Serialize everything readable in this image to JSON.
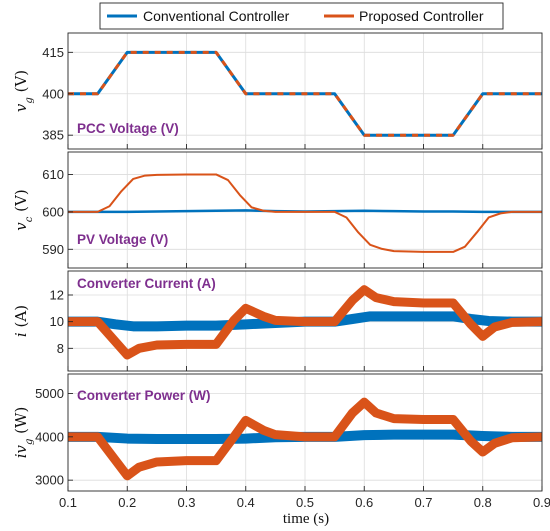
{
  "legend": {
    "items": [
      {
        "label": "Conventional Controller",
        "color": "#0072BD"
      },
      {
        "label": "Proposed Controller",
        "color": "#D95319"
      }
    ],
    "placement": "top"
  },
  "annotation_color": "#7E2F8E",
  "chart_data": [
    {
      "type": "line",
      "annotation": "PCC Voltage (V)",
      "ylabel": "v",
      "ylabel_sub": "g",
      "ylabel_unit": "(V)",
      "xlim": [
        0.1,
        0.9
      ],
      "ylim": [
        380,
        422
      ],
      "yticks": [
        385,
        400,
        415
      ],
      "grid": true,
      "series": [
        {
          "x": [
            0.1,
            0.15,
            0.2,
            0.35,
            0.4,
            0.55,
            0.6,
            0.75,
            0.8,
            0.9
          ],
          "y": [
            400,
            400,
            415,
            415,
            400,
            400,
            385,
            385,
            400,
            400
          ],
          "width": 3
        },
        {
          "x": [
            0.1,
            0.15,
            0.2,
            0.35,
            0.4,
            0.55,
            0.6,
            0.75,
            0.8,
            0.9
          ],
          "y": [
            400,
            400,
            415,
            415,
            400,
            400,
            385,
            385,
            400,
            400
          ],
          "width": 3,
          "dashed": true
        }
      ]
    },
    {
      "type": "line",
      "annotation": "PV Voltage (V)",
      "ylabel": "v",
      "ylabel_sub": "c",
      "ylabel_unit": "(V)",
      "xlim": [
        0.1,
        0.9
      ],
      "ylim": [
        585,
        616
      ],
      "yticks": [
        590,
        600,
        610
      ],
      "grid": true,
      "series": [
        {
          "x": [
            0.1,
            0.15,
            0.2,
            0.25,
            0.3,
            0.35,
            0.4,
            0.45,
            0.5,
            0.55,
            0.6,
            0.65,
            0.7,
            0.75,
            0.8,
            0.85,
            0.9
          ],
          "y": [
            600,
            600,
            600,
            600.1,
            600.2,
            600.3,
            600.4,
            600.2,
            600.1,
            600.2,
            600.3,
            600.2,
            600.1,
            600.1,
            600,
            600,
            600
          ],
          "width": 2.5
        },
        {
          "x": [
            0.1,
            0.15,
            0.17,
            0.19,
            0.21,
            0.23,
            0.25,
            0.3,
            0.35,
            0.37,
            0.39,
            0.41,
            0.43,
            0.45,
            0.5,
            0.55,
            0.57,
            0.59,
            0.61,
            0.63,
            0.65,
            0.7,
            0.75,
            0.77,
            0.79,
            0.81,
            0.83,
            0.85,
            0.9
          ],
          "y": [
            600,
            600,
            601.5,
            605.5,
            608.8,
            609.7,
            609.9,
            610,
            610,
            608.5,
            604.5,
            601.2,
            600.3,
            600,
            600,
            600,
            598.5,
            594.5,
            591.2,
            590.1,
            589.5,
            589.3,
            589.3,
            590.7,
            594.5,
            598.5,
            599.6,
            600,
            600
          ],
          "width": 2
        }
      ]
    },
    {
      "type": "line",
      "annotation": "Converter Current (A)",
      "ylabel": "i",
      "ylabel_sub": "",
      "ylabel_unit": "(A)",
      "xlim": [
        0.1,
        0.9
      ],
      "ylim": [
        6.3,
        13.8
      ],
      "yticks": [
        8,
        10,
        12
      ],
      "grid": true,
      "series": [
        {
          "x": [
            0.1,
            0.15,
            0.18,
            0.21,
            0.25,
            0.3,
            0.35,
            0.4,
            0.45,
            0.5,
            0.55,
            0.58,
            0.61,
            0.65,
            0.7,
            0.75,
            0.78,
            0.81,
            0.85,
            0.9
          ],
          "y": [
            10,
            10,
            9.8,
            9.65,
            9.65,
            9.7,
            9.7,
            9.8,
            9.9,
            10,
            10,
            10.2,
            10.4,
            10.4,
            10.4,
            10.4,
            10.2,
            10.05,
            10,
            10
          ],
          "width": 10
        },
        {
          "x": [
            0.1,
            0.15,
            0.2,
            0.22,
            0.25,
            0.3,
            0.35,
            0.38,
            0.4,
            0.43,
            0.45,
            0.5,
            0.55,
            0.58,
            0.6,
            0.62,
            0.65,
            0.7,
            0.75,
            0.78,
            0.8,
            0.82,
            0.85,
            0.9
          ],
          "y": [
            10,
            10,
            7.5,
            8.0,
            8.25,
            8.3,
            8.3,
            10.1,
            11.0,
            10.4,
            10.1,
            10,
            10,
            11.6,
            12.4,
            11.8,
            11.5,
            11.4,
            11.4,
            9.8,
            8.9,
            9.6,
            9.95,
            10
          ],
          "width": 9
        }
      ]
    },
    {
      "type": "line",
      "annotation": "Converter Power (W)",
      "ylabel": "iv",
      "ylabel_sub": "g",
      "ylabel_unit": "(W)",
      "xlim": [
        0.1,
        0.9
      ],
      "ylim": [
        2750,
        5450
      ],
      "yticks": [
        3000,
        4000,
        5000
      ],
      "grid": true,
      "series": [
        {
          "x": [
            0.1,
            0.15,
            0.2,
            0.25,
            0.3,
            0.35,
            0.4,
            0.45,
            0.5,
            0.55,
            0.6,
            0.65,
            0.7,
            0.75,
            0.8,
            0.85,
            0.9
          ],
          "y": [
            4000,
            4000,
            3960,
            3950,
            3950,
            3950,
            3960,
            3990,
            4000,
            4000,
            4040,
            4050,
            4050,
            4050,
            4020,
            4000,
            4000
          ],
          "width": 10
        },
        {
          "x": [
            0.1,
            0.15,
            0.2,
            0.22,
            0.25,
            0.3,
            0.35,
            0.38,
            0.4,
            0.43,
            0.45,
            0.5,
            0.55,
            0.58,
            0.6,
            0.62,
            0.65,
            0.7,
            0.75,
            0.78,
            0.8,
            0.82,
            0.85,
            0.9
          ],
          "y": [
            4000,
            4000,
            3100,
            3300,
            3420,
            3450,
            3450,
            4000,
            4380,
            4150,
            4050,
            4000,
            4000,
            4550,
            4800,
            4550,
            4420,
            4400,
            4400,
            3900,
            3650,
            3850,
            3980,
            4000
          ],
          "width": 9
        }
      ]
    }
  ],
  "shared_x": {
    "label": "time (s)",
    "ticks": [
      "0.1",
      "0.2",
      "0.3",
      "0.4",
      "0.5",
      "0.6",
      "0.7",
      "0.8",
      "0.9"
    ],
    "values": [
      0.1,
      0.2,
      0.3,
      0.4,
      0.5,
      0.6,
      0.7,
      0.8,
      0.9
    ]
  }
}
